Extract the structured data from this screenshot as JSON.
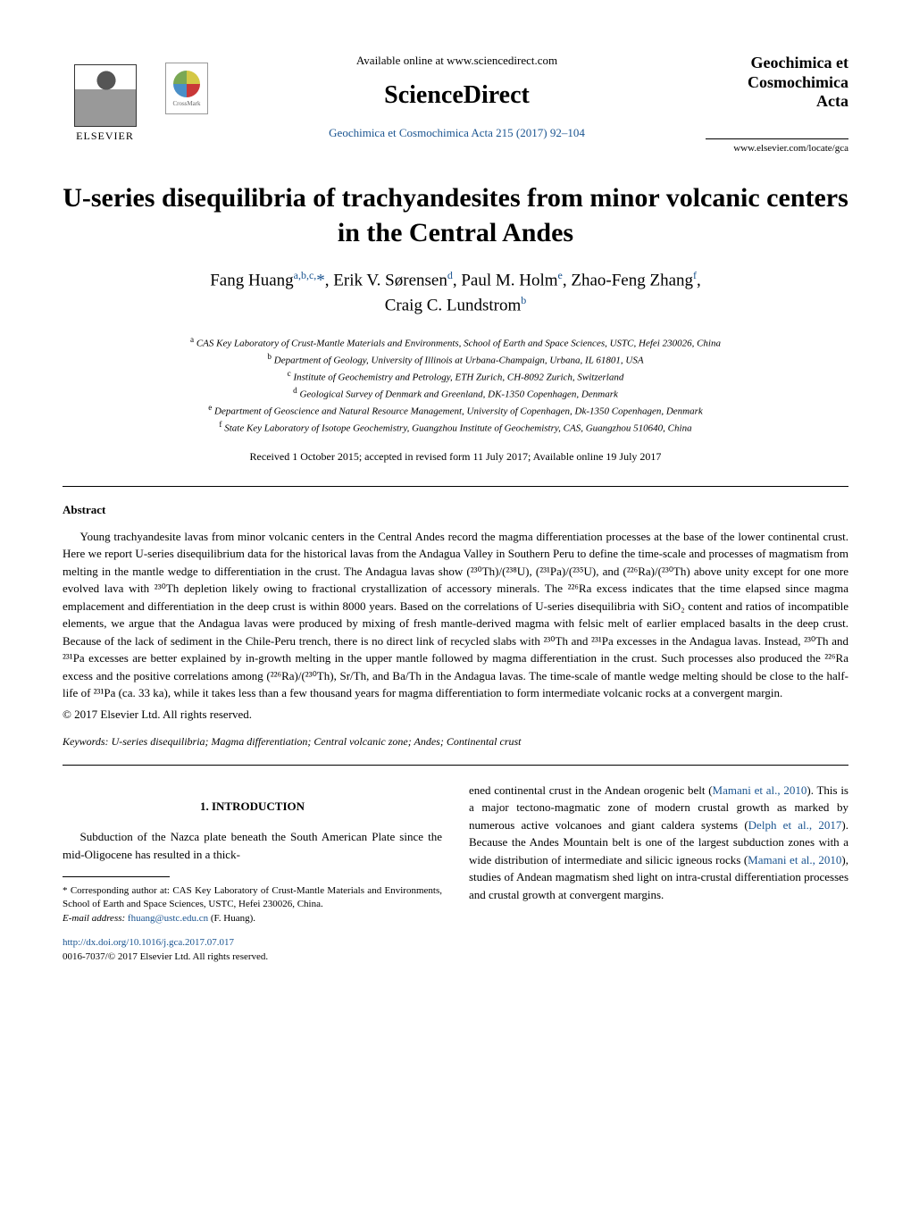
{
  "header": {
    "elsevier_label": "ELSEVIER",
    "crossmark_label": "CrossMark",
    "available_online": "Available online at www.sciencedirect.com",
    "sciencedirect": "ScienceDirect",
    "journal_reference": "Geochimica et Cosmochimica Acta 215 (2017) 92–104",
    "journal_name_line1": "Geochimica et",
    "journal_name_line2": "Cosmochimica",
    "journal_name_line3": "Acta",
    "journal_url": "www.elsevier.com/locate/gca"
  },
  "title": "U-series disequilibria of trachyandesites from minor volcanic centers in the Central Andes",
  "authors": [
    {
      "name": "Fang Huang",
      "sup": "a,b,c,",
      "symbol": "*"
    },
    {
      "name": "Erik V. Sørensen",
      "sup": "d"
    },
    {
      "name": "Paul M. Holm",
      "sup": "e"
    },
    {
      "name": "Zhao-Feng Zhang",
      "sup": "f"
    },
    {
      "name": "Craig C. Lundstrom",
      "sup": "b"
    }
  ],
  "affiliations": [
    {
      "sup": "a",
      "text": "CAS Key Laboratory of Crust-Mantle Materials and Environments, School of Earth and Space Sciences, USTC, Hefei 230026, China"
    },
    {
      "sup": "b",
      "text": "Department of Geology, University of Illinois at Urbana-Champaign, Urbana, IL 61801, USA"
    },
    {
      "sup": "c",
      "text": "Institute of Geochemistry and Petrology, ETH Zurich, CH-8092 Zurich, Switzerland"
    },
    {
      "sup": "d",
      "text": "Geological Survey of Denmark and Greenland, DK-1350 Copenhagen, Denmark"
    },
    {
      "sup": "e",
      "text": "Department of Geoscience and Natural Resource Management, University of Copenhagen, Dk-1350 Copenhagen, Denmark"
    },
    {
      "sup": "f",
      "text": "State Key Laboratory of Isotope Geochemistry, Guangzhou Institute of Geochemistry, CAS, Guangzhou 510640, China"
    }
  ],
  "received": "Received 1 October 2015; accepted in revised form 11 July 2017; Available online 19 July 2017",
  "abstract_heading": "Abstract",
  "abstract_text": "Young trachyandesite lavas from minor volcanic centers in the Central Andes record the magma differentiation processes at the base of the lower continental crust. Here we report U-series disequilibrium data for the historical lavas from the Andagua Valley in Southern Peru to define the time-scale and processes of magmatism from melting in the mantle wedge to differentiation in the crust. The Andagua lavas show (²³⁰Th)/(²³⁸U), (²³¹Pa)/(²³⁵U), and (²²⁶Ra)/(²³⁰Th) above unity except for one more evolved lava with ²³⁰Th depletion likely owing to fractional crystallization of accessory minerals. The ²²⁶Ra excess indicates that the time elapsed since magma emplacement and differentiation in the deep crust is within 8000 years. Based on the correlations of U-series disequilibria with SiO₂ content and ratios of incompatible elements, we argue that the Andagua lavas were produced by mixing of fresh mantle-derived magma with felsic melt of earlier emplaced basalts in the deep crust. Because of the lack of sediment in the Chile-Peru trench, there is no direct link of recycled slabs with ²³⁰Th and ²³¹Pa excesses in the Andagua lavas. Instead, ²³⁰Th and ²³¹Pa excesses are better explained by in-growth melting in the upper mantle followed by magma differentiation in the crust. Such processes also produced the ²²⁶Ra excess and the positive correlations among (²²⁶Ra)/(²³⁰Th), Sr/Th, and Ba/Th in the Andagua lavas. The time-scale of mantle wedge melting should be close to the half-life of ²³¹Pa (ca. 33 ka), while it takes less than a few thousand years for magma differentiation to form intermediate volcanic rocks at a convergent margin.",
  "copyright": "© 2017 Elsevier Ltd. All rights reserved.",
  "keywords_label": "Keywords:",
  "keywords_text": "U-series disequilibria; Magma differentiation; Central volcanic zone; Andes; Continental crust",
  "section_heading": "1. INTRODUCTION",
  "intro_col1": "Subduction of the Nazca plate beneath the South American Plate since the mid-Oligocene has resulted in a thick-",
  "intro_col2_part1": "ened continental crust in the Andean orogenic belt (",
  "intro_col2_cite1": "Mamani et al., 2010",
  "intro_col2_part2": "). This is a major tectono-magmatic zone of modern crustal growth as marked by numerous active volcanoes and giant caldera systems (",
  "intro_col2_cite2": "Delph et al., 2017",
  "intro_col2_part3": "). Because the Andes Mountain belt is one of the largest subduction zones with a wide distribution of intermediate and silicic igneous rocks (",
  "intro_col2_cite3": "Mamani et al., 2010",
  "intro_col2_part4": "), studies of Andean magmatism shed light on intra-crustal differentiation processes and crustal growth at convergent margins.",
  "footnote": {
    "corresponding": "* Corresponding author at: CAS Key Laboratory of Crust-Mantle Materials and Environments, School of Earth and Space Sciences, USTC, Hefei 230026, China.",
    "email_label": "E-mail address:",
    "email": "fhuang@ustc.edu.cn",
    "email_name": "(F. Huang)."
  },
  "doi": {
    "link": "http://dx.doi.org/10.1016/j.gca.2017.07.017",
    "issn": "0016-7037/© 2017 Elsevier Ltd. All rights reserved."
  },
  "colors": {
    "link_color": "#1a5490",
    "text_color": "#000000",
    "background": "#ffffff"
  }
}
